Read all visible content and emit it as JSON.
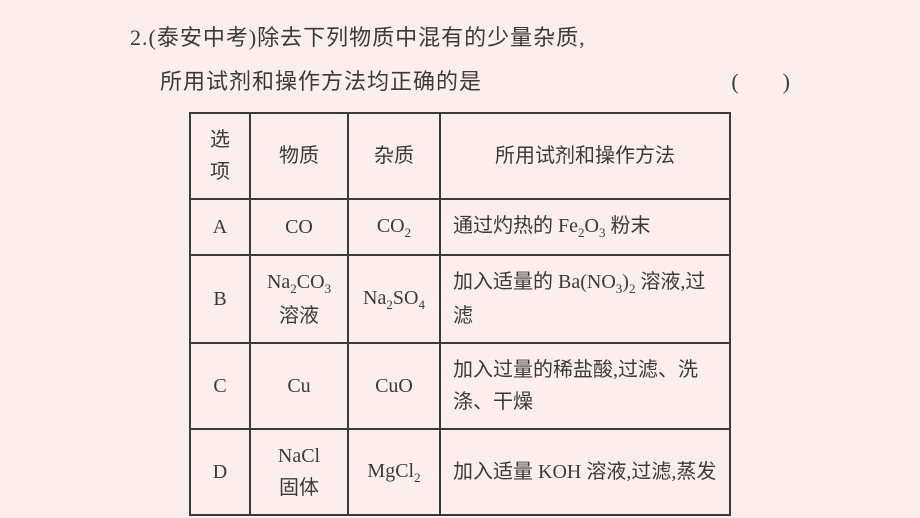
{
  "question": {
    "number": "2.",
    "source": "(泰安中考)",
    "text1": "除去下列物质中混有的少量杂质,",
    "text2": "所用试剂和操作方法均正确的是",
    "paren": "(　　)"
  },
  "table": {
    "headers": {
      "option": "选项",
      "substance": "物质",
      "impurity": "杂质",
      "method": "所用试剂和操作方法"
    },
    "rows": [
      {
        "option": "A",
        "substance": "CO",
        "impurity": "CO₂",
        "method": "通过灼热的 Fe₂O₃ 粉末"
      },
      {
        "option": "B",
        "substance": "Na₂CO₃\n溶液",
        "impurity": "Na₂SO₄",
        "method": "加入适量的 Ba(NO₃)₂ 溶液,过滤"
      },
      {
        "option": "C",
        "substance": "Cu",
        "impurity": "CuO",
        "method": "加入过量的稀盐酸,过滤、洗涤、干燥"
      },
      {
        "option": "D",
        "substance": "NaCl\n固体",
        "impurity": "MgCl₂",
        "method": "加入适量 KOH 溶液,过滤,蒸发"
      }
    ]
  },
  "style": {
    "background_color": "#fdeeee",
    "text_color": "#3a3a3a",
    "border_color": "#3a3a3a",
    "question_fontsize": 22,
    "cell_fontsize": 20
  }
}
